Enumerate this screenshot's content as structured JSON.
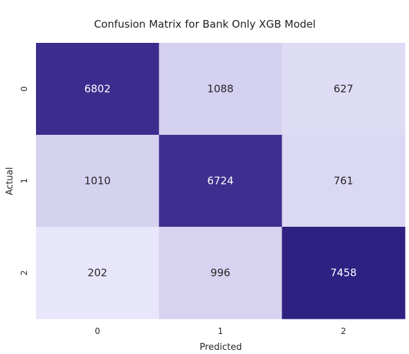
{
  "chart_data": {
    "type": "heatmap",
    "title": "Confusion Matrix for Bank Only XGB Model",
    "xlabel": "Predicted",
    "ylabel": "Actual",
    "x_categories": [
      "0",
      "1",
      "2"
    ],
    "y_categories": [
      "0",
      "1",
      "2"
    ],
    "values": [
      [
        6802,
        1088,
        627
      ],
      [
        1010,
        6724,
        761
      ],
      [
        202,
        996,
        7458
      ]
    ],
    "colormap": "Purples",
    "color_low": "#e8e6fb",
    "color_high": "#2e2182",
    "colorbar": false
  }
}
